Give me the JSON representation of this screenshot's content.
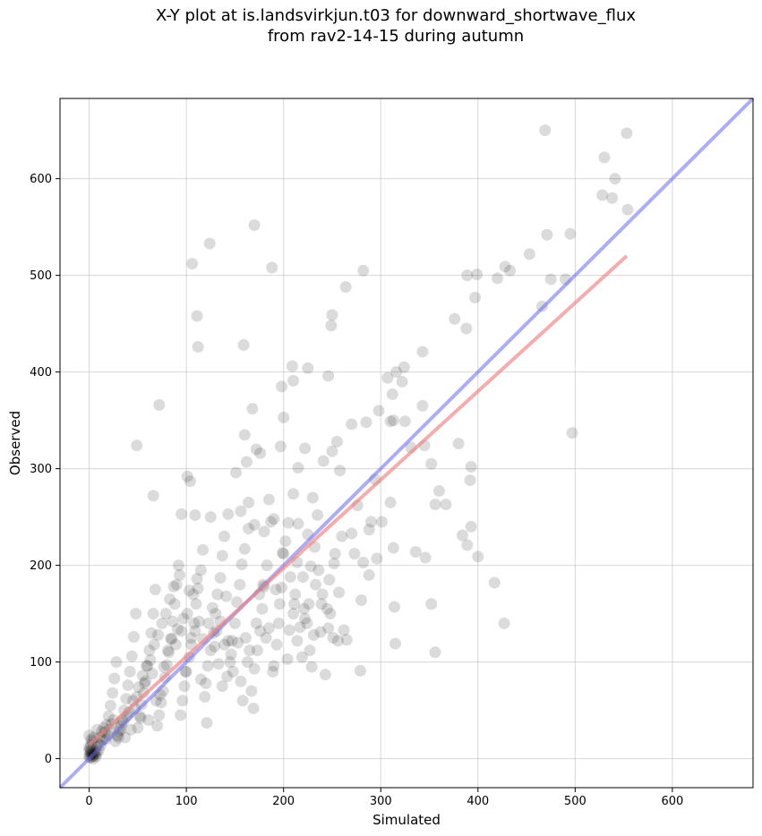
{
  "chart_data": {
    "type": "scatter",
    "title_line1": "X-Y plot at is.landsvirkjun.t03 for downward_shortwave_flux",
    "title_line2": "from rav2-14-15 during autumn",
    "xlabel": "Simulated",
    "ylabel": "Observed",
    "xlim": [
      -30,
      683
    ],
    "ylim": [
      -30,
      683
    ],
    "xticks": [
      0,
      100,
      200,
      300,
      400,
      500,
      600
    ],
    "yticks": [
      0,
      100,
      200,
      300,
      400,
      500,
      600
    ],
    "grid": true,
    "colors": {
      "points": "#000000",
      "fit_line": "#f08080",
      "one_to_one": "#6a6aef"
    },
    "one_to_one_line": {
      "x": [
        -30,
        683
      ],
      "y": [
        -30,
        683
      ]
    },
    "fit_line": {
      "x": [
        0,
        553
      ],
      "y": [
        14,
        520
      ]
    },
    "points": [
      [
        469,
        650
      ],
      [
        553,
        647
      ],
      [
        530,
        622
      ],
      [
        541,
        600
      ],
      [
        528,
        583
      ],
      [
        538,
        580
      ],
      [
        554,
        568
      ],
      [
        471,
        542
      ],
      [
        495,
        543
      ],
      [
        453,
        522
      ],
      [
        433,
        505
      ],
      [
        428,
        509
      ],
      [
        475,
        496
      ],
      [
        490,
        496
      ],
      [
        420,
        497
      ],
      [
        170,
        552
      ],
      [
        124,
        533
      ],
      [
        106,
        512
      ],
      [
        188,
        508
      ],
      [
        282,
        505
      ],
      [
        264,
        488
      ],
      [
        399,
        501
      ],
      [
        389,
        500
      ],
      [
        111,
        458
      ],
      [
        250,
        459
      ],
      [
        249,
        448
      ],
      [
        397,
        477
      ],
      [
        376,
        455
      ],
      [
        388,
        445
      ],
      [
        466,
        468
      ],
      [
        159,
        428
      ],
      [
        112,
        426
      ],
      [
        343,
        421
      ],
      [
        209,
        406
      ],
      [
        225,
        404
      ],
      [
        324,
        405
      ],
      [
        316,
        400
      ],
      [
        307,
        394
      ],
      [
        246,
        396
      ],
      [
        210,
        391
      ],
      [
        198,
        385
      ],
      [
        322,
        390
      ],
      [
        343,
        365
      ],
      [
        312,
        377
      ],
      [
        298,
        360
      ],
      [
        168,
        362
      ],
      [
        72,
        366
      ],
      [
        200,
        353
      ],
      [
        313,
        350
      ],
      [
        325,
        349
      ],
      [
        310,
        349
      ],
      [
        285,
        348
      ],
      [
        270,
        346
      ],
      [
        160,
        335
      ],
      [
        255,
        328
      ],
      [
        172,
        320
      ],
      [
        49,
        324
      ],
      [
        197,
        323
      ],
      [
        222,
        321
      ],
      [
        176,
        316
      ],
      [
        241,
        308
      ],
      [
        331,
        322
      ],
      [
        345,
        324
      ],
      [
        497,
        337
      ],
      [
        380,
        326
      ],
      [
        393,
        302
      ],
      [
        352,
        305
      ],
      [
        162,
        307
      ],
      [
        215,
        301
      ],
      [
        250,
        318
      ],
      [
        258,
        298
      ],
      [
        276,
        262
      ],
      [
        294,
        289
      ],
      [
        101,
        292
      ],
      [
        151,
        296
      ],
      [
        66,
        272
      ],
      [
        104,
        287
      ],
      [
        164,
        265
      ],
      [
        185,
        268
      ],
      [
        230,
        270
      ],
      [
        210,
        274
      ],
      [
        392,
        288
      ],
      [
        356,
        263
      ],
      [
        360,
        277
      ],
      [
        367,
        263
      ],
      [
        393,
        240
      ],
      [
        310,
        265
      ],
      [
        290,
        245
      ],
      [
        301,
        245
      ],
      [
        95,
        253
      ],
      [
        109,
        252
      ],
      [
        125,
        250
      ],
      [
        143,
        253
      ],
      [
        156,
        256
      ],
      [
        170,
        242
      ],
      [
        180,
        235
      ],
      [
        190,
        248
      ],
      [
        205,
        244
      ],
      [
        215,
        243
      ],
      [
        225,
        232
      ],
      [
        235,
        252
      ],
      [
        270,
        233
      ],
      [
        273,
        212
      ],
      [
        288,
        237
      ],
      [
        296,
        207
      ],
      [
        313,
        218
      ],
      [
        336,
        214
      ],
      [
        346,
        208
      ],
      [
        384,
        231
      ],
      [
        389,
        221
      ],
      [
        400,
        209
      ],
      [
        417,
        182
      ],
      [
        427,
        140
      ],
      [
        352,
        160
      ],
      [
        356,
        110
      ],
      [
        314,
        157
      ],
      [
        315,
        119
      ],
      [
        288,
        190
      ],
      [
        282,
        203
      ],
      [
        280,
        164
      ],
      [
        279,
        91
      ],
      [
        262,
        133
      ],
      [
        265,
        123
      ],
      [
        257,
        172
      ],
      [
        252,
        202
      ],
      [
        247,
        185
      ],
      [
        245,
        155
      ],
      [
        240,
        170
      ],
      [
        238,
        131
      ],
      [
        232,
        219
      ],
      [
        228,
        199
      ],
      [
        226,
        160
      ],
      [
        222,
        145
      ],
      [
        220,
        188
      ],
      [
        214,
        203
      ],
      [
        212,
        170
      ],
      [
        210,
        150
      ],
      [
        206,
        133
      ],
      [
        204,
        103
      ],
      [
        200,
        212
      ],
      [
        198,
        177
      ],
      [
        195,
        140
      ],
      [
        193,
        118
      ],
      [
        190,
        96
      ],
      [
        187,
        245
      ],
      [
        183,
        200
      ],
      [
        180,
        178
      ],
      [
        178,
        155
      ],
      [
        176,
        132
      ],
      [
        173,
        112
      ],
      [
        170,
        93
      ],
      [
        167,
        70
      ],
      [
        164,
        238
      ],
      [
        160,
        217
      ],
      [
        157,
        201
      ],
      [
        155,
        180
      ],
      [
        152,
        162
      ],
      [
        150,
        140
      ],
      [
        147,
        122
      ],
      [
        145,
        100
      ],
      [
        142,
        85
      ],
      [
        139,
        230
      ],
      [
        137,
        210
      ],
      [
        135,
        187
      ],
      [
        132,
        170
      ],
      [
        130,
        150
      ],
      [
        128,
        130
      ],
      [
        125,
        112
      ],
      [
        122,
        96
      ],
      [
        120,
        78
      ],
      [
        117,
        216
      ],
      [
        115,
        195
      ],
      [
        112,
        176
      ],
      [
        110,
        160
      ],
      [
        108,
        140
      ],
      [
        105,
        125
      ],
      [
        103,
        105
      ],
      [
        100,
        90
      ],
      [
        98,
        75
      ],
      [
        96,
        60
      ],
      [
        94,
        45
      ],
      [
        92,
        200
      ],
      [
        90,
        180
      ],
      [
        88,
        160
      ],
      [
        86,
        142
      ],
      [
        84,
        124
      ],
      [
        82,
        110
      ],
      [
        80,
        97
      ],
      [
        78,
        84
      ],
      [
        76,
        70
      ],
      [
        74,
        58
      ],
      [
        72,
        45
      ],
      [
        70,
        34
      ],
      [
        68,
        175
      ],
      [
        66,
        150
      ],
      [
        64,
        130
      ],
      [
        62,
        112
      ],
      [
        60,
        96
      ],
      [
        58,
        80
      ],
      [
        56,
        68
      ],
      [
        54,
        56
      ],
      [
        52,
        44
      ],
      [
        50,
        32
      ],
      [
        48,
        150
      ],
      [
        46,
        126
      ],
      [
        44,
        106
      ],
      [
        42,
        90
      ],
      [
        40,
        76
      ],
      [
        38,
        62
      ],
      [
        36,
        50
      ],
      [
        34,
        40
      ],
      [
        32,
        30
      ],
      [
        30,
        22
      ],
      [
        28,
        100
      ],
      [
        26,
        83
      ],
      [
        24,
        68
      ],
      [
        22,
        55
      ],
      [
        20,
        44
      ],
      [
        18,
        35
      ],
      [
        16,
        27
      ],
      [
        14,
        20
      ],
      [
        12,
        14
      ],
      [
        10,
        9
      ],
      [
        8,
        6
      ],
      [
        6,
        4
      ],
      [
        4,
        3
      ],
      [
        3,
        5
      ],
      [
        2,
        8
      ],
      [
        1,
        10
      ],
      [
        2,
        14
      ],
      [
        3,
        18
      ],
      [
        5,
        22
      ],
      [
        7,
        12
      ],
      [
        9,
        16
      ],
      [
        11,
        22
      ],
      [
        13,
        28
      ],
      [
        15,
        32
      ],
      [
        17,
        20
      ],
      [
        19,
        25
      ],
      [
        21,
        30
      ],
      [
        23,
        36
      ],
      [
        25,
        40
      ],
      [
        27,
        18
      ],
      [
        29,
        24
      ],
      [
        31,
        28
      ],
      [
        33,
        34
      ],
      [
        35,
        38
      ],
      [
        37,
        22
      ],
      [
        39,
        44
      ],
      [
        41,
        48
      ],
      [
        43,
        30
      ],
      [
        45,
        60
      ],
      [
        47,
        52
      ],
      [
        49,
        64
      ],
      [
        51,
        74
      ],
      [
        53,
        42
      ],
      [
        55,
        86
      ],
      [
        57,
        78
      ],
      [
        59,
        96
      ],
      [
        61,
        40
      ],
      [
        63,
        102
      ],
      [
        65,
        88
      ],
      [
        67,
        118
      ],
      [
        69,
        60
      ],
      [
        71,
        128
      ],
      [
        73,
        66
      ],
      [
        75,
        140
      ],
      [
        77,
        95
      ],
      [
        79,
        150
      ],
      [
        81,
        112
      ],
      [
        83,
        165
      ],
      [
        85,
        124
      ],
      [
        87,
        178
      ],
      [
        89,
        118
      ],
      [
        91,
        134
      ],
      [
        93,
        190
      ],
      [
        95,
        132
      ],
      [
        97,
        145
      ],
      [
        99,
        90
      ],
      [
        101,
        150
      ],
      [
        103,
        174
      ],
      [
        105,
        118
      ],
      [
        107,
        170
      ],
      [
        109,
        132
      ],
      [
        111,
        186
      ],
      [
        113,
        142
      ],
      [
        115,
        82
      ],
      [
        117,
        124
      ],
      [
        119,
        64
      ],
      [
        121,
        37
      ],
      [
        123,
        140
      ],
      [
        127,
        156
      ],
      [
        129,
        116
      ],
      [
        131,
        132
      ],
      [
        133,
        98
      ],
      [
        135,
        142
      ],
      [
        137,
        75
      ],
      [
        139,
        118
      ],
      [
        141,
        168
      ],
      [
        143,
        122
      ],
      [
        146,
        108
      ],
      [
        148,
        90
      ],
      [
        153,
        120
      ],
      [
        156,
        80
      ],
      [
        158,
        60
      ],
      [
        161,
        125
      ],
      [
        163,
        100
      ],
      [
        165,
        112
      ],
      [
        169,
        52
      ],
      [
        172,
        140
      ],
      [
        175,
        170
      ],
      [
        179,
        180
      ],
      [
        182,
        125
      ],
      [
        185,
        135
      ],
      [
        189,
        90
      ],
      [
        192,
        175
      ],
      [
        196,
        160
      ],
      [
        199,
        213
      ],
      [
        202,
        225
      ],
      [
        207,
        188
      ],
      [
        211,
        160
      ],
      [
        214,
        122
      ],
      [
        217,
        136
      ],
      [
        219,
        105
      ],
      [
        221,
        155
      ],
      [
        224,
        140
      ],
      [
        227,
        112
      ],
      [
        229,
        95
      ],
      [
        231,
        128
      ],
      [
        233,
        180
      ],
      [
        236,
        195
      ],
      [
        239,
        160
      ],
      [
        243,
        87
      ],
      [
        246,
        135
      ],
      [
        248,
        150
      ],
      [
        251,
        125
      ],
      [
        253,
        212
      ],
      [
        256,
        122
      ],
      [
        260,
        230
      ],
      [
        0,
        2
      ],
      [
        1,
        4
      ],
      [
        2,
        6
      ],
      [
        0,
        8
      ],
      [
        4,
        0
      ],
      [
        3,
        2
      ],
      [
        1,
        1
      ],
      [
        5,
        5
      ],
      [
        6,
        7
      ],
      [
        0,
        12
      ],
      [
        2,
        20
      ],
      [
        0,
        24
      ],
      [
        7,
        2
      ],
      [
        8,
        30
      ]
    ]
  }
}
